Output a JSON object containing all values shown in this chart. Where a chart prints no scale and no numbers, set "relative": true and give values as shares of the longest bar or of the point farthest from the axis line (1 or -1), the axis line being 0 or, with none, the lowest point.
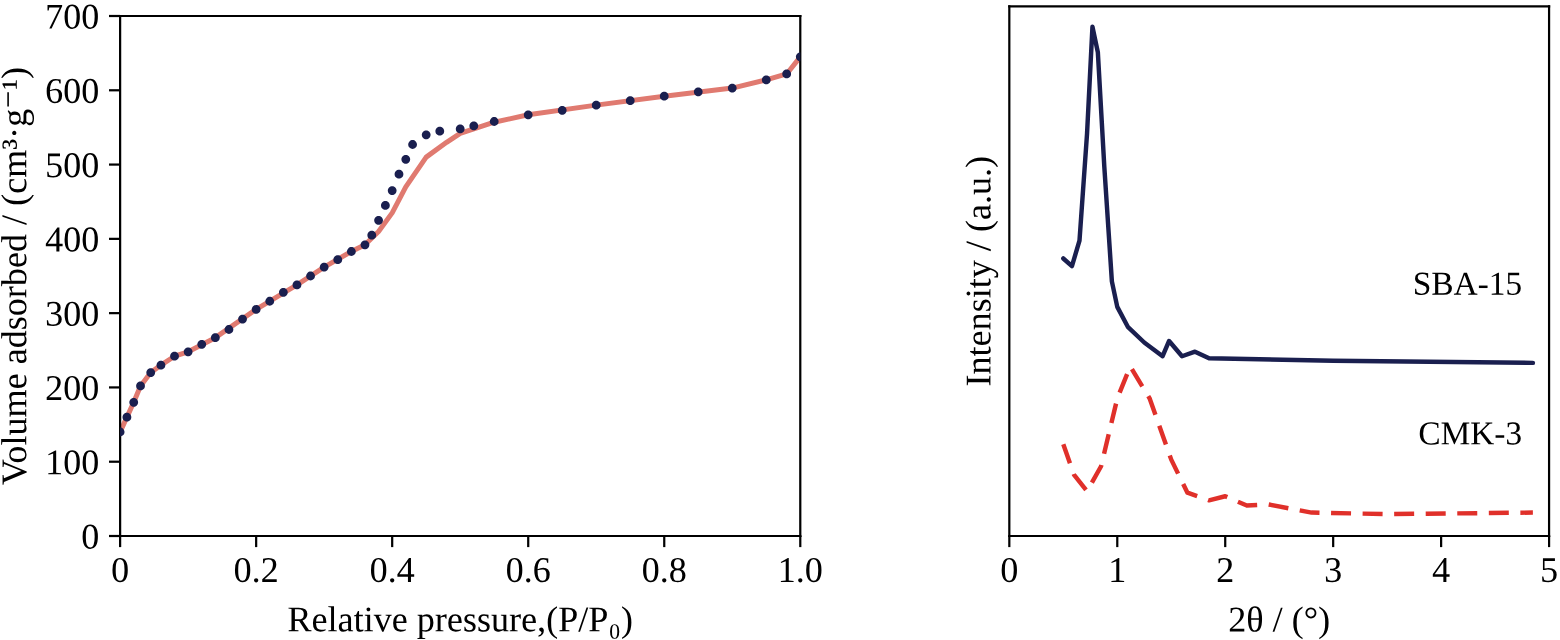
{
  "chart_data": [
    {
      "type": "line",
      "xlabel": "Relative pressure,(P/P₀)",
      "ylabel": "Volume adsorbed / (cm³·g⁻¹)",
      "xlim": [
        0,
        1
      ],
      "xticks": [
        0,
        0.2,
        0.4,
        0.6,
        0.8,
        {
          "value": 1,
          "label": "1.0"
        }
      ],
      "ylim": [
        0,
        700
      ],
      "yticks": [
        0,
        100,
        200,
        300,
        400,
        500,
        600,
        700
      ],
      "grid": false,
      "legend": false,
      "series": [
        {
          "type": "scatter",
          "marker": "circle",
          "color": "#1a1f4f",
          "x": [
            0.0,
            0.01,
            0.02,
            0.03,
            0.045,
            0.06,
            0.08,
            0.1,
            0.12,
            0.14,
            0.16,
            0.18,
            0.2,
            0.22,
            0.24,
            0.26,
            0.28,
            0.3,
            0.32,
            0.34,
            0.36,
            0.37,
            0.38,
            0.39,
            0.4,
            0.41,
            0.42,
            0.43,
            0.45,
            0.47,
            0.5,
            0.52,
            0.55,
            0.6,
            0.65,
            0.7,
            0.75,
            0.8,
            0.85,
            0.9,
            0.95,
            0.98,
            1.0
          ],
          "values": [
            140,
            160,
            180,
            202,
            220,
            230,
            242,
            248,
            258,
            267,
            278,
            292,
            305,
            316,
            328,
            338,
            350,
            362,
            372,
            383,
            392,
            405,
            425,
            445,
            465,
            487,
            507,
            527,
            540,
            545,
            548,
            552,
            558,
            567,
            573,
            580,
            586,
            592,
            598,
            603,
            614,
            622,
            645
          ]
        },
        {
          "type": "line",
          "line_style": "solid",
          "color": "#e07a70",
          "x": [
            0.0,
            0.01,
            0.02,
            0.03,
            0.045,
            0.06,
            0.08,
            0.1,
            0.14,
            0.2,
            0.26,
            0.3,
            0.34,
            0.36,
            0.38,
            0.4,
            0.42,
            0.45,
            0.48,
            0.5,
            0.55,
            0.6,
            0.7,
            0.8,
            0.9,
            0.95,
            0.98,
            1.0
          ],
          "values": [
            140,
            160,
            180,
            202,
            220,
            230,
            242,
            248,
            267,
            305,
            338,
            362,
            383,
            392,
            410,
            435,
            470,
            510,
            530,
            542,
            557,
            567,
            580,
            592,
            603,
            614,
            622,
            645
          ]
        }
      ]
    },
    {
      "type": "line",
      "relative": true,
      "xlabel": "2θ / (°)",
      "ylabel": "Intensity / (a.u.)",
      "tick_labels": "x",
      "xlim": [
        0,
        5
      ],
      "xticks": [
        0,
        1,
        2,
        3,
        4,
        5
      ],
      "grid": false,
      "legend": false,
      "series": [
        {
          "name": "SBA-15",
          "color": "#1a1f4f",
          "line_style": "solid",
          "x": [
            0.5,
            0.58,
            0.65,
            0.72,
            0.77,
            0.82,
            0.88,
            0.95,
            1.0,
            1.1,
            1.25,
            1.42,
            1.48,
            1.6,
            1.72,
            1.85,
            3.0,
            4.85
          ],
          "values": [
            0.545,
            0.53,
            0.58,
            0.79,
            1.0,
            0.95,
            0.725,
            0.5,
            0.45,
            0.41,
            0.38,
            0.353,
            0.383,
            0.353,
            0.362,
            0.349,
            0.344,
            0.34
          ]
        },
        {
          "name": "CMK-3",
          "color": "#e0302a",
          "line_style": "dashed",
          "x": [
            0.5,
            0.6,
            0.72,
            0.85,
            1.0,
            1.12,
            1.3,
            1.5,
            1.65,
            1.85,
            2.0,
            2.2,
            2.4,
            2.8,
            3.5,
            4.85
          ],
          "values": [
            0.18,
            0.12,
            0.088,
            0.137,
            0.27,
            0.333,
            0.27,
            0.15,
            0.085,
            0.07,
            0.078,
            0.06,
            0.062,
            0.046,
            0.043,
            0.046
          ]
        }
      ]
    }
  ]
}
